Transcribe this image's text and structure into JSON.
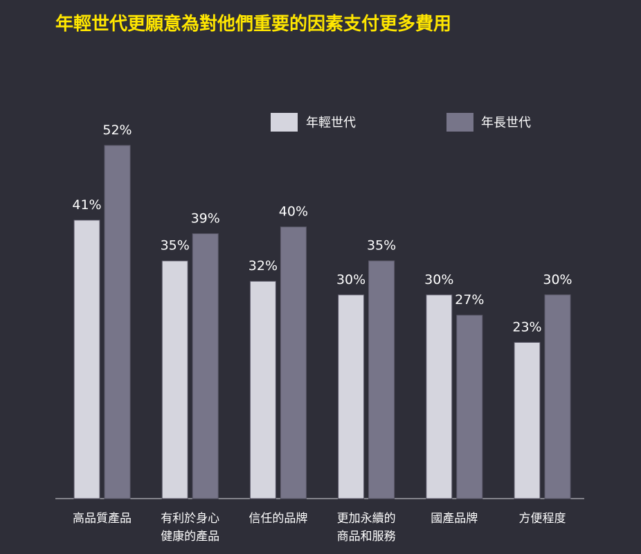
{
  "title": "年輕世代更願意為對他們重要的因素支付更多費用",
  "colors": {
    "background": "#2e2e38",
    "title": "#ffe600",
    "series_young": "#d5d5de",
    "series_old": "#777589",
    "axis": "#d8d8de",
    "text": "#ffffff"
  },
  "chart_data": {
    "type": "bar",
    "title": "年輕世代更願意為對他們重要的因素支付更多費用",
    "categories": [
      [
        "高品質產品"
      ],
      [
        "有利於身心",
        "健康的產品"
      ],
      [
        "信任的品牌"
      ],
      [
        "更加永續的",
        "商品和服務"
      ],
      [
        "國產品牌"
      ],
      [
        "方便程度"
      ]
    ],
    "series": [
      {
        "name": "年輕世代",
        "values": [
          41,
          35,
          32,
          30,
          30,
          23
        ],
        "labels": [
          "41%",
          "35%",
          "32%",
          "30%",
          "30%",
          "23%"
        ]
      },
      {
        "name": "年長世代",
        "values": [
          52,
          39,
          40,
          35,
          27,
          30
        ],
        "labels": [
          "52%",
          "39%",
          "40%",
          "35%",
          "27%",
          "30%"
        ]
      }
    ],
    "unit": "%",
    "ylim": [
      0,
      52
    ],
    "grid": false,
    "legend": "top-right"
  }
}
